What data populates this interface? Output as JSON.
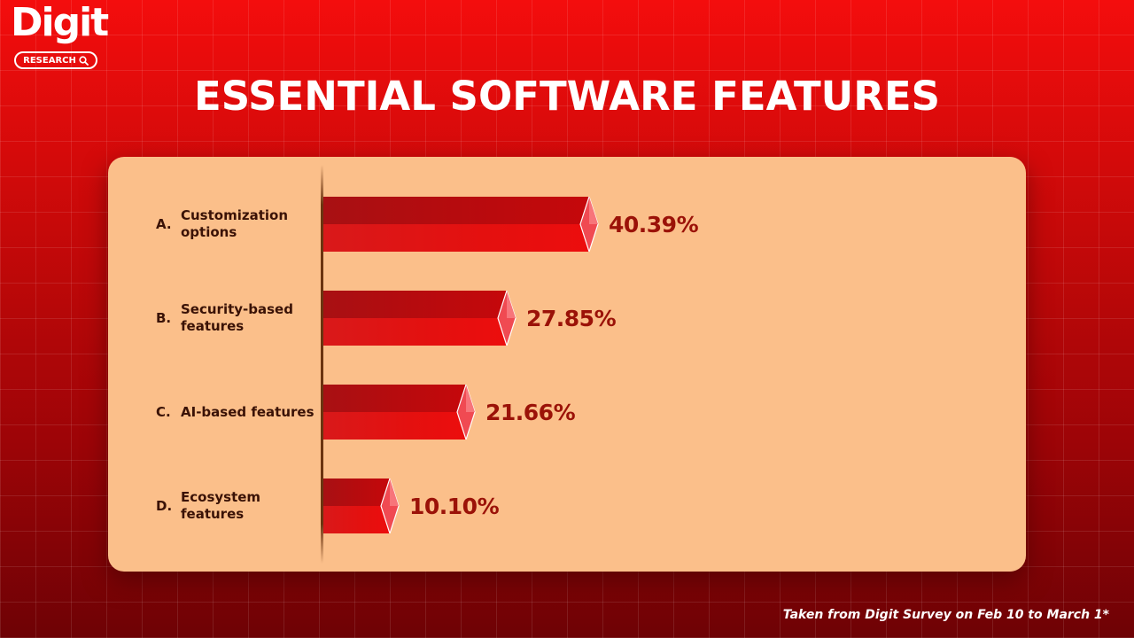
{
  "logo": {
    "wordmark": "Digit",
    "badge": "RESEARCH",
    "badge_icon": "magnifier-icon"
  },
  "footnote": "Taken from Digit Survey on Feb 10 to March 1*",
  "colors": {
    "background": "#d40a0a",
    "card": "#fbbf8a",
    "bar": "#d9191a",
    "value_text": "#9b1208",
    "label_text": "#3a1206"
  },
  "chart_data": {
    "type": "bar",
    "orientation": "horizontal",
    "title": "ESSENTIAL SOFTWARE FEATURES",
    "letters": [
      "A.",
      "B.",
      "C.",
      "D."
    ],
    "categories": [
      "Customization\noptions",
      "Security-based\nfeatures",
      "AI-based features",
      "Ecosystem\nfeatures"
    ],
    "values": [
      40.39,
      27.85,
      21.66,
      10.1
    ],
    "value_labels": [
      "40.39%",
      "27.85%",
      "21.66%",
      "10.10%"
    ],
    "unit": "%",
    "xlim": [
      0,
      100
    ],
    "grid": false,
    "legend": "none"
  }
}
